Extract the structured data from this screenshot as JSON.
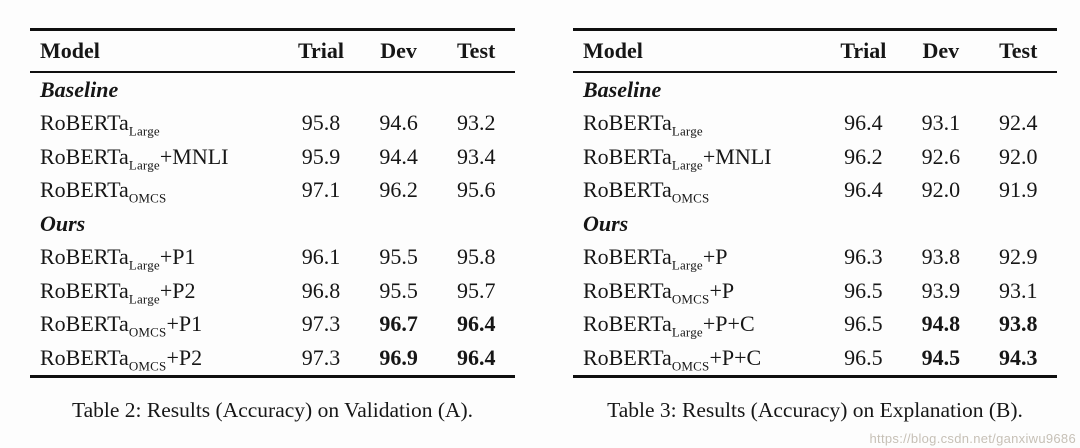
{
  "watermark": "https://blog.csdn.net/ganxiwu9686",
  "tables": [
    {
      "caption": "Table 2: Results (Accuracy) on Validation (A).",
      "columns": [
        "Model",
        "Trial",
        "Dev",
        "Test"
      ],
      "sections": [
        {
          "label": "Baseline",
          "rows": [
            {
              "model": {
                "base": "RoBERTa",
                "sub": "Large",
                "suffix": ""
              },
              "cells": [
                {
                  "v": "95.8",
                  "b": false
                },
                {
                  "v": "94.6",
                  "b": false
                },
                {
                  "v": "93.2",
                  "b": false
                }
              ]
            },
            {
              "model": {
                "base": "RoBERTa",
                "sub": "Large",
                "suffix": "+MNLI"
              },
              "cells": [
                {
                  "v": "95.9",
                  "b": false
                },
                {
                  "v": "94.4",
                  "b": false
                },
                {
                  "v": "93.4",
                  "b": false
                }
              ]
            },
            {
              "model": {
                "base": "RoBERTa",
                "sub": "OMCS",
                "suffix": ""
              },
              "cells": [
                {
                  "v": "97.1",
                  "b": false
                },
                {
                  "v": "96.2",
                  "b": false
                },
                {
                  "v": "95.6",
                  "b": false
                }
              ]
            }
          ]
        },
        {
          "label": "Ours",
          "rows": [
            {
              "model": {
                "base": "RoBERTa",
                "sub": "Large",
                "suffix": "+P1"
              },
              "cells": [
                {
                  "v": "96.1",
                  "b": false
                },
                {
                  "v": "95.5",
                  "b": false
                },
                {
                  "v": "95.8",
                  "b": false
                }
              ]
            },
            {
              "model": {
                "base": "RoBERTa",
                "sub": "Large",
                "suffix": "+P2"
              },
              "cells": [
                {
                  "v": "96.8",
                  "b": false
                },
                {
                  "v": "95.5",
                  "b": false
                },
                {
                  "v": "95.7",
                  "b": false
                }
              ]
            },
            {
              "model": {
                "base": "RoBERTa",
                "sub": "OMCS",
                "suffix": "+P1"
              },
              "cells": [
                {
                  "v": "97.3",
                  "b": false
                },
                {
                  "v": "96.7",
                  "b": true
                },
                {
                  "v": "96.4",
                  "b": true
                }
              ]
            },
            {
              "model": {
                "base": "RoBERTa",
                "sub": "OMCS",
                "suffix": "+P2"
              },
              "cells": [
                {
                  "v": "97.3",
                  "b": false
                },
                {
                  "v": "96.9",
                  "b": true
                },
                {
                  "v": "96.4",
                  "b": true
                }
              ]
            }
          ]
        }
      ]
    },
    {
      "caption": "Table 3: Results (Accuracy) on Explanation (B).",
      "columns": [
        "Model",
        "Trial",
        "Dev",
        "Test"
      ],
      "sections": [
        {
          "label": "Baseline",
          "rows": [
            {
              "model": {
                "base": "RoBERTa",
                "sub": "Large",
                "suffix": ""
              },
              "cells": [
                {
                  "v": "96.4",
                  "b": false
                },
                {
                  "v": "93.1",
                  "b": false
                },
                {
                  "v": "92.4",
                  "b": false
                }
              ]
            },
            {
              "model": {
                "base": "RoBERTa",
                "sub": "Large",
                "suffix": "+MNLI"
              },
              "cells": [
                {
                  "v": "96.2",
                  "b": false
                },
                {
                  "v": "92.6",
                  "b": false
                },
                {
                  "v": "92.0",
                  "b": false
                }
              ]
            },
            {
              "model": {
                "base": "RoBERTa",
                "sub": "OMCS",
                "suffix": ""
              },
              "cells": [
                {
                  "v": "96.4",
                  "b": false
                },
                {
                  "v": "92.0",
                  "b": false
                },
                {
                  "v": "91.9",
                  "b": false
                }
              ]
            }
          ]
        },
        {
          "label": "Ours",
          "rows": [
            {
              "model": {
                "base": "RoBERTa",
                "sub": "Large",
                "suffix": "+P"
              },
              "cells": [
                {
                  "v": "96.3",
                  "b": false
                },
                {
                  "v": "93.8",
                  "b": false
                },
                {
                  "v": "92.9",
                  "b": false
                }
              ]
            },
            {
              "model": {
                "base": "RoBERTa",
                "sub": "OMCS",
                "suffix": "+P"
              },
              "cells": [
                {
                  "v": "96.5",
                  "b": false
                },
                {
                  "v": "93.9",
                  "b": false
                },
                {
                  "v": "93.1",
                  "b": false
                }
              ]
            },
            {
              "model": {
                "base": "RoBERTa",
                "sub": "Large",
                "suffix": "+P+C"
              },
              "cells": [
                {
                  "v": "96.5",
                  "b": false
                },
                {
                  "v": "94.8",
                  "b": true
                },
                {
                  "v": "93.8",
                  "b": true
                }
              ]
            },
            {
              "model": {
                "base": "RoBERTa",
                "sub": "OMCS",
                "suffix": "+P+C"
              },
              "cells": [
                {
                  "v": "96.5",
                  "b": false
                },
                {
                  "v": "94.5",
                  "b": true
                },
                {
                  "v": "94.3",
                  "b": true
                }
              ]
            }
          ]
        }
      ]
    }
  ]
}
